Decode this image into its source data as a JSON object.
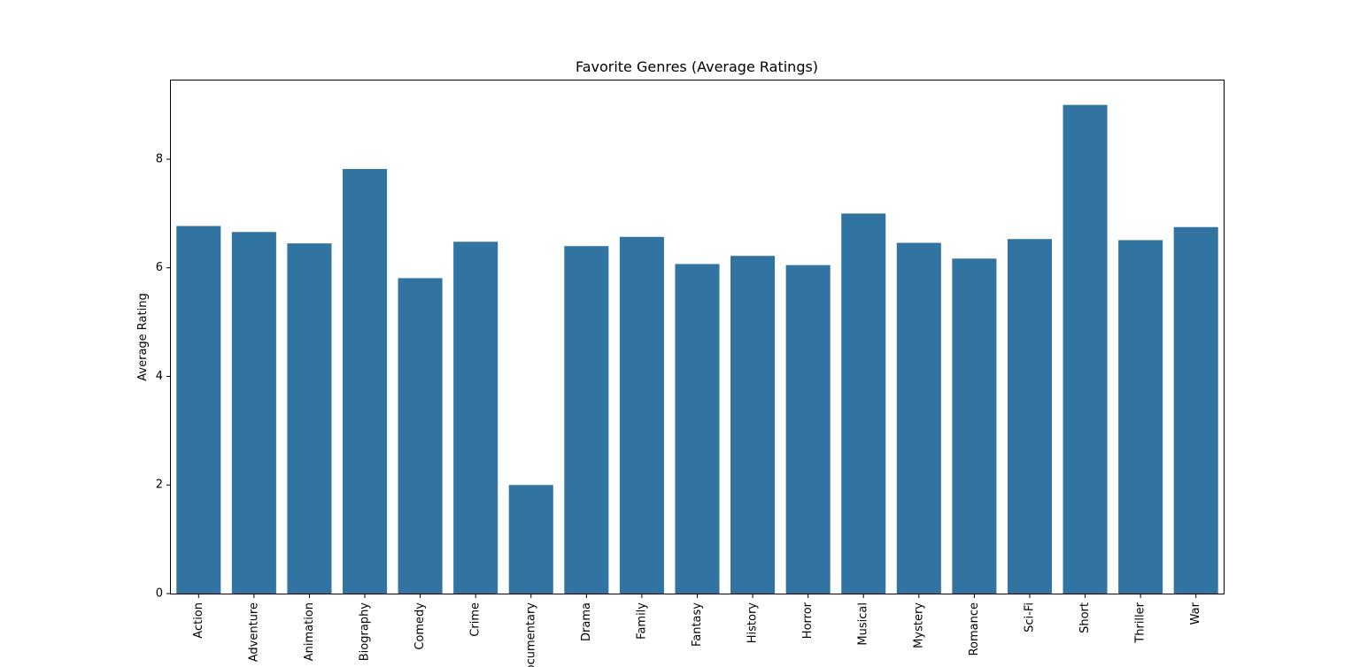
{
  "chart_data": {
    "type": "bar",
    "title": "Favorite Genres (Average Ratings)",
    "xlabel": "",
    "ylabel": "Average Rating",
    "categories": [
      "Action",
      "Adventure",
      "Animation",
      "Biography",
      "Comedy",
      "Crime",
      "Documentary",
      "Drama",
      "Family",
      "Fantasy",
      "History",
      "Horror",
      "Musical",
      "Mystery",
      "Romance",
      "Sci-Fi",
      "Short",
      "Thriller",
      "War"
    ],
    "values": [
      6.77,
      6.66,
      6.45,
      7.82,
      5.81,
      6.48,
      2.0,
      6.4,
      6.57,
      6.07,
      6.22,
      6.05,
      7.0,
      6.46,
      6.17,
      6.53,
      9.0,
      6.51,
      6.75
    ],
    "ylim": [
      0,
      9.45
    ],
    "yticks": [
      0,
      2,
      4,
      6,
      8
    ],
    "bar_color": "#3274a1",
    "grid": false,
    "xtick_rotation": 90
  }
}
